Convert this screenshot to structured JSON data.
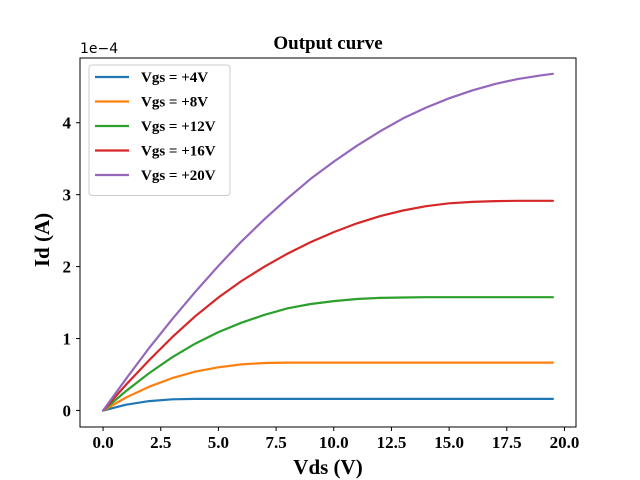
{
  "chart_data": {
    "type": "line",
    "title": "Output curve",
    "xlabel": "Vds (V)",
    "ylabel": "Id (A)",
    "y_offset_label": "1e−4",
    "xlim": [
      -1.0,
      20.5
    ],
    "ylim": [
      -0.23,
      4.9
    ],
    "x_ticks": [
      0.0,
      2.5,
      5.0,
      7.5,
      10.0,
      12.5,
      15.0,
      17.5,
      20.0
    ],
    "x_tick_labels": [
      "0.0",
      "2.5",
      "5.0",
      "7.5",
      "10.0",
      "12.5",
      "15.0",
      "17.5",
      "20.0"
    ],
    "y_ticks": [
      0,
      1,
      2,
      3,
      4
    ],
    "y_tick_labels": [
      "0",
      "1",
      "2",
      "3",
      "4"
    ],
    "grid": false,
    "legend_position": "top-left",
    "x": [
      0,
      1,
      2,
      3,
      4,
      5,
      6,
      7,
      8,
      9,
      10,
      11,
      12,
      13,
      14,
      15,
      16,
      17,
      18,
      19,
      19.5
    ],
    "series": [
      {
        "name": "Vgs = +4V",
        "color": "#1f77b4",
        "values": [
          0,
          0.08,
          0.13,
          0.155,
          0.16,
          0.16,
          0.16,
          0.16,
          0.16,
          0.16,
          0.16,
          0.16,
          0.16,
          0.16,
          0.16,
          0.16,
          0.16,
          0.16,
          0.16,
          0.16,
          0.16
        ]
      },
      {
        "name": "Vgs = +8V",
        "color": "#ff7f0e",
        "values": [
          0,
          0.18,
          0.33,
          0.45,
          0.54,
          0.6,
          0.64,
          0.66,
          0.665,
          0.665,
          0.665,
          0.665,
          0.665,
          0.665,
          0.665,
          0.665,
          0.665,
          0.665,
          0.665,
          0.665,
          0.665
        ]
      },
      {
        "name": "Vgs = +12V",
        "color": "#2ca02c",
        "values": [
          0,
          0.27,
          0.52,
          0.74,
          0.93,
          1.09,
          1.22,
          1.33,
          1.42,
          1.48,
          1.52,
          1.55,
          1.565,
          1.57,
          1.575,
          1.575,
          1.575,
          1.575,
          1.575,
          1.575,
          1.575
        ]
      },
      {
        "name": "Vgs = +16V",
        "color": "#d62728",
        "values": [
          0,
          0.36,
          0.7,
          1.02,
          1.31,
          1.57,
          1.8,
          2.0,
          2.18,
          2.34,
          2.48,
          2.6,
          2.7,
          2.78,
          2.84,
          2.88,
          2.9,
          2.91,
          2.915,
          2.915,
          2.915
        ]
      },
      {
        "name": "Vgs = +20V",
        "color": "#9467bd",
        "values": [
          0,
          0.44,
          0.87,
          1.27,
          1.65,
          2.01,
          2.35,
          2.66,
          2.95,
          3.22,
          3.46,
          3.68,
          3.88,
          4.06,
          4.21,
          4.34,
          4.45,
          4.54,
          4.61,
          4.66,
          4.68
        ]
      }
    ]
  }
}
